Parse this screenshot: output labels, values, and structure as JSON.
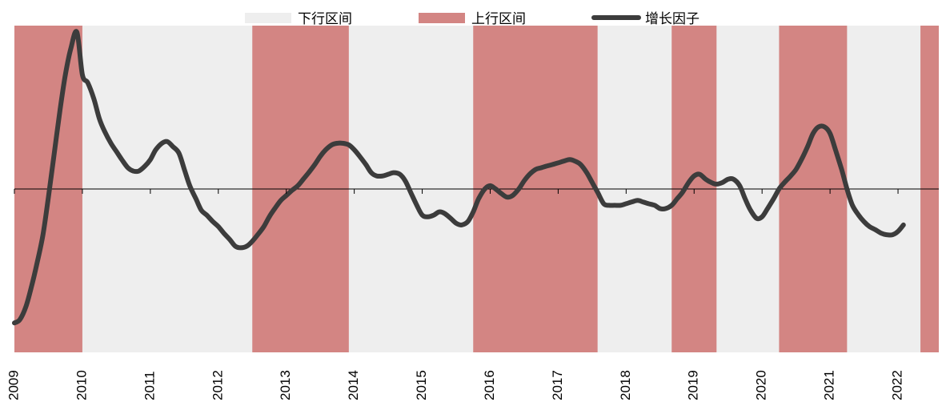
{
  "chart_data": {
    "type": "line",
    "legend": {
      "placement": "top-center",
      "items": [
        {
          "label": "下行区间",
          "kind": "band",
          "color": "#eeeeee"
        },
        {
          "label": "上行区间",
          "kind": "band",
          "color": "#d38583"
        },
        {
          "label": "增长因子",
          "kind": "line",
          "color": "#3c3c3c"
        }
      ]
    },
    "x_ticks": [
      "2009",
      "2010",
      "2011",
      "2012",
      "2013",
      "2014",
      "2015",
      "2016",
      "2017",
      "2018",
      "2019",
      "2020",
      "2021",
      "2022"
    ],
    "xlim": [
      2009.0,
      2022.6
    ],
    "ylim": [
      -1.0,
      1.0
    ],
    "zero_line": true,
    "bands": [
      {
        "kind": "up",
        "start": 2009.0,
        "end": 2010.0
      },
      {
        "kind": "up",
        "start": 2012.5,
        "end": 2013.92
      },
      {
        "kind": "up",
        "start": 2015.75,
        "end": 2017.58
      },
      {
        "kind": "up",
        "start": 2018.67,
        "end": 2019.33
      },
      {
        "kind": "up",
        "start": 2020.25,
        "end": 2021.25
      },
      {
        "kind": "up",
        "start": 2022.33,
        "end": 2022.6
      }
    ],
    "series": [
      {
        "name": "增长因子",
        "color": "#3c3c3c",
        "points": [
          [
            2009.0,
            -0.82
          ],
          [
            2009.08,
            -0.8
          ],
          [
            2009.17,
            -0.72
          ],
          [
            2009.25,
            -0.6
          ],
          [
            2009.33,
            -0.46
          ],
          [
            2009.42,
            -0.28
          ],
          [
            2009.5,
            -0.05
          ],
          [
            2009.58,
            0.2
          ],
          [
            2009.67,
            0.48
          ],
          [
            2009.75,
            0.7
          ],
          [
            2009.83,
            0.86
          ],
          [
            2009.92,
            0.96
          ],
          [
            2010.0,
            0.7
          ],
          [
            2010.08,
            0.65
          ],
          [
            2010.17,
            0.55
          ],
          [
            2010.25,
            0.43
          ],
          [
            2010.33,
            0.35
          ],
          [
            2010.42,
            0.28
          ],
          [
            2010.5,
            0.23
          ],
          [
            2010.58,
            0.18
          ],
          [
            2010.67,
            0.13
          ],
          [
            2010.75,
            0.11
          ],
          [
            2010.83,
            0.11
          ],
          [
            2010.92,
            0.14
          ],
          [
            2011.0,
            0.18
          ],
          [
            2011.08,
            0.24
          ],
          [
            2011.17,
            0.28
          ],
          [
            2011.25,
            0.29
          ],
          [
            2011.33,
            0.26
          ],
          [
            2011.42,
            0.22
          ],
          [
            2011.5,
            0.12
          ],
          [
            2011.58,
            0.02
          ],
          [
            2011.67,
            -0.06
          ],
          [
            2011.75,
            -0.13
          ],
          [
            2011.83,
            -0.16
          ],
          [
            2011.92,
            -0.2
          ],
          [
            2012.0,
            -0.23
          ],
          [
            2012.08,
            -0.27
          ],
          [
            2012.17,
            -0.31
          ],
          [
            2012.25,
            -0.35
          ],
          [
            2012.33,
            -0.36
          ],
          [
            2012.42,
            -0.35
          ],
          [
            2012.5,
            -0.32
          ],
          [
            2012.58,
            -0.28
          ],
          [
            2012.67,
            -0.23
          ],
          [
            2012.75,
            -0.17
          ],
          [
            2012.83,
            -0.12
          ],
          [
            2012.92,
            -0.07
          ],
          [
            2013.0,
            -0.04
          ],
          [
            2013.08,
            -0.01
          ],
          [
            2013.17,
            0.02
          ],
          [
            2013.25,
            0.06
          ],
          [
            2013.33,
            0.1
          ],
          [
            2013.42,
            0.15
          ],
          [
            2013.5,
            0.2
          ],
          [
            2013.58,
            0.24
          ],
          [
            2013.67,
            0.27
          ],
          [
            2013.75,
            0.28
          ],
          [
            2013.83,
            0.28
          ],
          [
            2013.92,
            0.27
          ],
          [
            2014.0,
            0.24
          ],
          [
            2014.08,
            0.2
          ],
          [
            2014.17,
            0.15
          ],
          [
            2014.25,
            0.1
          ],
          [
            2014.33,
            0.08
          ],
          [
            2014.42,
            0.08
          ],
          [
            2014.5,
            0.09
          ],
          [
            2014.58,
            0.1
          ],
          [
            2014.67,
            0.09
          ],
          [
            2014.75,
            0.05
          ],
          [
            2014.83,
            -0.02
          ],
          [
            2014.92,
            -0.1
          ],
          [
            2015.0,
            -0.16
          ],
          [
            2015.08,
            -0.17
          ],
          [
            2015.17,
            -0.16
          ],
          [
            2015.25,
            -0.14
          ],
          [
            2015.33,
            -0.15
          ],
          [
            2015.42,
            -0.18
          ],
          [
            2015.5,
            -0.21
          ],
          [
            2015.58,
            -0.22
          ],
          [
            2015.67,
            -0.2
          ],
          [
            2015.75,
            -0.14
          ],
          [
            2015.83,
            -0.06
          ],
          [
            2015.92,
            0.0
          ],
          [
            2016.0,
            0.02
          ],
          [
            2016.08,
            0.0
          ],
          [
            2016.17,
            -0.03
          ],
          [
            2016.25,
            -0.05
          ],
          [
            2016.33,
            -0.04
          ],
          [
            2016.42,
            0.0
          ],
          [
            2016.5,
            0.05
          ],
          [
            2016.58,
            0.09
          ],
          [
            2016.67,
            0.12
          ],
          [
            2016.75,
            0.13
          ],
          [
            2016.83,
            0.14
          ],
          [
            2016.92,
            0.15
          ],
          [
            2017.0,
            0.16
          ],
          [
            2017.08,
            0.17
          ],
          [
            2017.17,
            0.18
          ],
          [
            2017.25,
            0.17
          ],
          [
            2017.33,
            0.15
          ],
          [
            2017.42,
            0.1
          ],
          [
            2017.5,
            0.04
          ],
          [
            2017.58,
            -0.02
          ],
          [
            2017.67,
            -0.09
          ],
          [
            2017.75,
            -0.1
          ],
          [
            2017.83,
            -0.1
          ],
          [
            2017.92,
            -0.1
          ],
          [
            2018.0,
            -0.09
          ],
          [
            2018.08,
            -0.08
          ],
          [
            2018.17,
            -0.07
          ],
          [
            2018.25,
            -0.08
          ],
          [
            2018.33,
            -0.09
          ],
          [
            2018.42,
            -0.1
          ],
          [
            2018.5,
            -0.12
          ],
          [
            2018.58,
            -0.12
          ],
          [
            2018.67,
            -0.1
          ],
          [
            2018.75,
            -0.06
          ],
          [
            2018.83,
            -0.02
          ],
          [
            2018.92,
            0.04
          ],
          [
            2019.0,
            0.08
          ],
          [
            2019.08,
            0.09
          ],
          [
            2019.17,
            0.06
          ],
          [
            2019.25,
            0.04
          ],
          [
            2019.33,
            0.03
          ],
          [
            2019.42,
            0.04
          ],
          [
            2019.5,
            0.06
          ],
          [
            2019.58,
            0.06
          ],
          [
            2019.67,
            0.02
          ],
          [
            2019.75,
            -0.06
          ],
          [
            2019.83,
            -0.13
          ],
          [
            2019.92,
            -0.18
          ],
          [
            2020.0,
            -0.17
          ],
          [
            2020.08,
            -0.12
          ],
          [
            2020.17,
            -0.06
          ],
          [
            2020.25,
            0.0
          ],
          [
            2020.33,
            0.04
          ],
          [
            2020.42,
            0.08
          ],
          [
            2020.5,
            0.12
          ],
          [
            2020.58,
            0.18
          ],
          [
            2020.67,
            0.26
          ],
          [
            2020.75,
            0.34
          ],
          [
            2020.83,
            0.38
          ],
          [
            2020.92,
            0.38
          ],
          [
            2021.0,
            0.34
          ],
          [
            2021.08,
            0.24
          ],
          [
            2021.17,
            0.12
          ],
          [
            2021.25,
            0.0
          ],
          [
            2021.33,
            -0.1
          ],
          [
            2021.42,
            -0.16
          ],
          [
            2021.5,
            -0.2
          ],
          [
            2021.58,
            -0.23
          ],
          [
            2021.67,
            -0.25
          ],
          [
            2021.75,
            -0.27
          ],
          [
            2021.83,
            -0.28
          ],
          [
            2021.92,
            -0.28
          ],
          [
            2022.0,
            -0.26
          ],
          [
            2022.08,
            -0.22
          ]
        ]
      }
    ]
  }
}
